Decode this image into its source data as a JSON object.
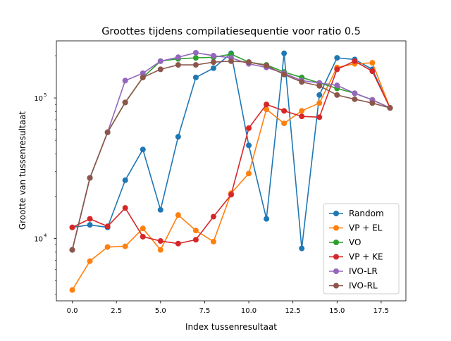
{
  "chart_data": {
    "type": "line",
    "title": "Groottes tijdens compilatiesequentie voor ratio 0.5",
    "xlabel": "Index tussenresultaat",
    "ylabel": "Grootte van tussenresultaat",
    "yscale": "log",
    "xlim": [
      -0.9,
      18.9
    ],
    "ylim": [
      3600,
      255000
    ],
    "xticks": [
      0.0,
      2.5,
      5.0,
      7.5,
      10.0,
      12.5,
      15.0,
      17.5
    ],
    "xtick_labels": [
      "0.0",
      "2.5",
      "5.0",
      "7.5",
      "10.0",
      "12.5",
      "15.0",
      "17.5"
    ],
    "yticks": [
      {
        "value": 10000,
        "base": "10",
        "exp": "4"
      },
      {
        "value": 100000,
        "base": "10",
        "exp": "5"
      }
    ],
    "grid": false,
    "legend_position": "lower right",
    "x": [
      0,
      1,
      2,
      3,
      4,
      5,
      6,
      7,
      8,
      9,
      10,
      11,
      12,
      13,
      14,
      15,
      16,
      17,
      18
    ],
    "series": [
      {
        "name": "Random",
        "color": "#1f77b4",
        "values": [
          12000,
          12500,
          12000,
          26000,
          43000,
          16000,
          53000,
          140000,
          163000,
          208000,
          46000,
          13800,
          208000,
          8500,
          105000,
          193000,
          188000,
          160000,
          85000
        ]
      },
      {
        "name": "VP + EL",
        "color": "#ff7f0e",
        "values": [
          4300,
          6900,
          8700,
          8800,
          11800,
          8300,
          14700,
          11400,
          9500,
          21000,
          29000,
          83000,
          66000,
          81000,
          92000,
          165000,
          175000,
          178000,
          85000
        ]
      },
      {
        "name": "VO",
        "color": "#2ca02c",
        "values": [
          8300,
          27000,
          57000,
          93000,
          140000,
          183000,
          190000,
          193000,
          195000,
          205000,
          180000,
          172000,
          153000,
          140000,
          128000,
          117000,
          108000,
          97000,
          85000
        ]
      },
      {
        "name": "VP + KE",
        "color": "#d62728",
        "values": [
          12000,
          13800,
          12200,
          16500,
          10300,
          9600,
          9200,
          9800,
          14300,
          20500,
          61000,
          90000,
          81000,
          74000,
          73000,
          160000,
          183000,
          155000,
          85000
        ]
      },
      {
        "name": "IVO-LR",
        "color": "#9467bd",
        "values": [
          8300,
          27000,
          57000,
          133000,
          150000,
          183000,
          195000,
          210000,
          200000,
          193000,
          175000,
          165000,
          150000,
          133000,
          128000,
          123000,
          108000,
          97000,
          85000
        ]
      },
      {
        "name": "IVO-RL",
        "color": "#8c564b",
        "values": [
          8300,
          27000,
          57000,
          93000,
          140000,
          160000,
          172000,
          172000,
          180000,
          183000,
          180000,
          170000,
          147000,
          130000,
          122000,
          105000,
          98000,
          92000,
          85000
        ]
      }
    ]
  }
}
